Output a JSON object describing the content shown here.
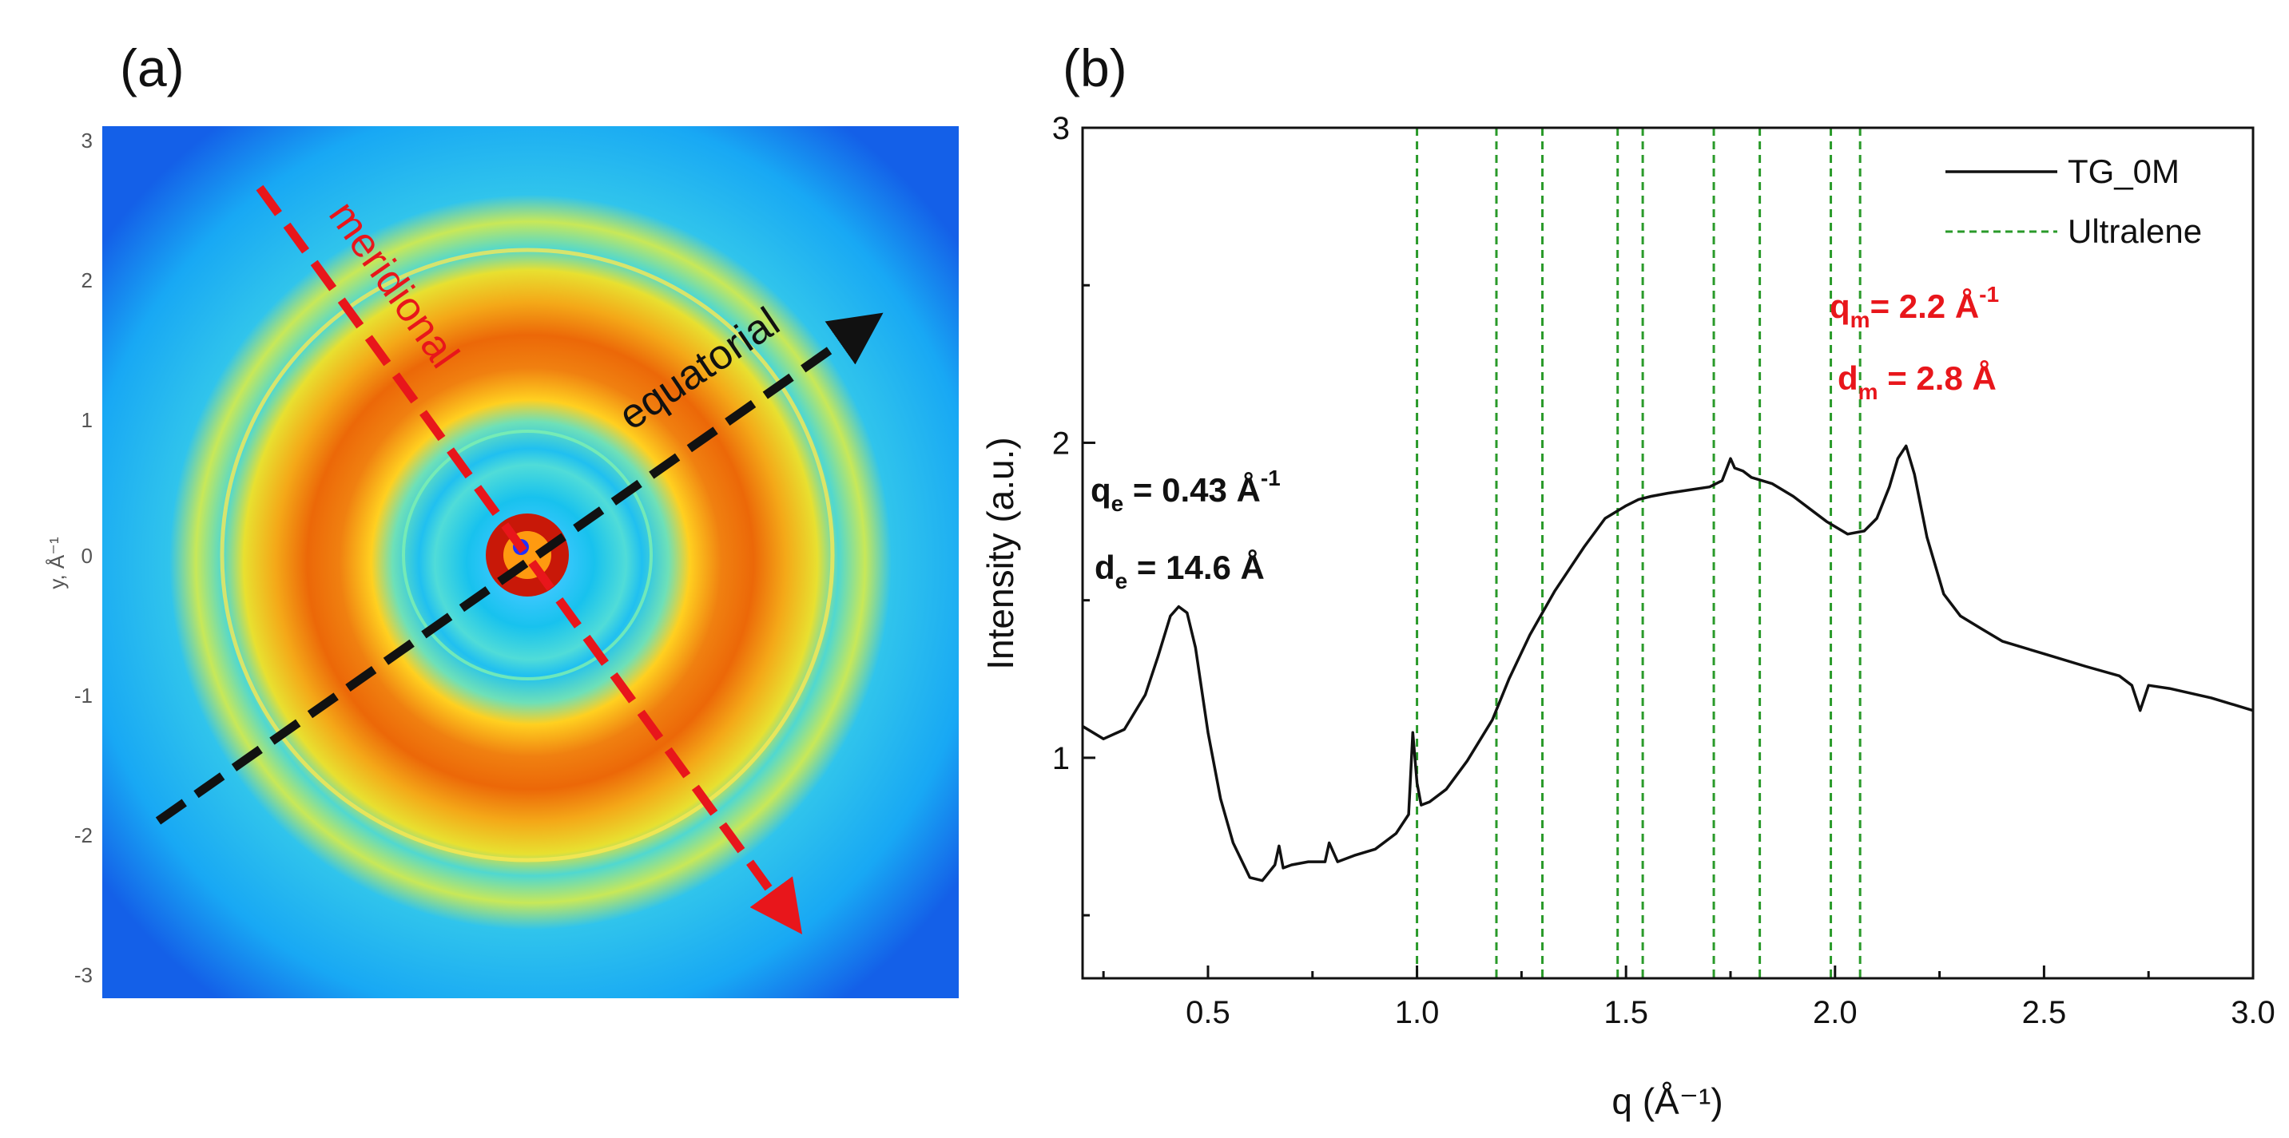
{
  "panel_a": {
    "label": "(a)",
    "y_axis_label": "y, Å⁻¹",
    "y_ticks": [
      "3",
      "2",
      "1",
      "0",
      "-1",
      "-2",
      "-3"
    ],
    "meridional_label": "meridional",
    "equatorial_label": "equatorial",
    "colors": {
      "meridional": "#e8161b",
      "equatorial": "#111111"
    }
  },
  "panel_b": {
    "label": "(b)",
    "annotations": {
      "qe": {
        "main": "q",
        "sub": "e",
        "rest": " = 0.43 Å",
        "sup": "-1"
      },
      "de": {
        "main": "d",
        "sub": "e",
        "rest": " = 14.6 Å"
      },
      "qm": {
        "main": "q",
        "sub": "m",
        "rest": "= 2.2 Å",
        "sup": "-1"
      },
      "dm": {
        "main": "d",
        "sub": "m",
        "rest": " = 2.8 Å"
      }
    },
    "colors": {
      "curve": "#111111",
      "ultralene": "#2a9a2a",
      "highlight": "#e8161b"
    }
  },
  "chart_data": {
    "type": "line",
    "title": "",
    "xlabel": "q (Å⁻¹)",
    "ylabel": "Intensity (a.u.)",
    "xlim": [
      0.2,
      3.0
    ],
    "ylim": [
      0.3,
      3.0
    ],
    "x_ticks": [
      0.5,
      1.0,
      1.5,
      2.0,
      2.5,
      3.0
    ],
    "x_tick_labels": [
      "0.5",
      "1.0",
      "1.5",
      "2.0",
      "2.5",
      "3.0"
    ],
    "y_ticks": [
      1,
      2,
      3
    ],
    "y_tick_labels": [
      "1",
      "2",
      "3"
    ],
    "legend": [
      {
        "name": "TG_0M",
        "style": "solid"
      },
      {
        "name": "Ultralene",
        "style": "dashed"
      }
    ],
    "legend_position": "top-right",
    "series": [
      {
        "name": "TG_0M",
        "x": [
          0.2,
          0.25,
          0.3,
          0.35,
          0.38,
          0.41,
          0.43,
          0.45,
          0.47,
          0.5,
          0.53,
          0.56,
          0.6,
          0.63,
          0.66,
          0.67,
          0.68,
          0.7,
          0.74,
          0.78,
          0.79,
          0.81,
          0.85,
          0.9,
          0.95,
          0.98,
          0.99,
          1.0,
          1.01,
          1.03,
          1.07,
          1.12,
          1.18,
          1.22,
          1.27,
          1.3,
          1.33,
          1.36,
          1.4,
          1.45,
          1.5,
          1.53,
          1.56,
          1.6,
          1.65,
          1.7,
          1.73,
          1.75,
          1.76,
          1.78,
          1.8,
          1.85,
          1.9,
          1.94,
          1.98,
          2.03,
          2.07,
          2.1,
          2.13,
          2.15,
          2.17,
          2.19,
          2.22,
          2.26,
          2.3,
          2.35,
          2.4,
          2.5,
          2.6,
          2.68,
          2.71,
          2.73,
          2.75,
          2.8,
          2.9,
          3.0
        ],
        "values": [
          1.1,
          1.06,
          1.09,
          1.2,
          1.32,
          1.45,
          1.48,
          1.46,
          1.35,
          1.08,
          0.87,
          0.73,
          0.62,
          0.61,
          0.66,
          0.72,
          0.65,
          0.66,
          0.67,
          0.67,
          0.73,
          0.67,
          0.69,
          0.71,
          0.76,
          0.82,
          1.08,
          0.92,
          0.85,
          0.86,
          0.9,
          0.99,
          1.12,
          1.25,
          1.39,
          1.46,
          1.53,
          1.59,
          1.67,
          1.76,
          1.8,
          1.82,
          1.83,
          1.84,
          1.85,
          1.86,
          1.88,
          1.95,
          1.92,
          1.91,
          1.89,
          1.87,
          1.83,
          1.79,
          1.75,
          1.71,
          1.72,
          1.76,
          1.86,
          1.95,
          1.99,
          1.9,
          1.7,
          1.52,
          1.45,
          1.41,
          1.37,
          1.33,
          1.29,
          1.26,
          1.23,
          1.15,
          1.23,
          1.22,
          1.19,
          1.15
        ]
      }
    ],
    "vlines": [
      1.0,
      1.19,
      1.3,
      1.48,
      1.54,
      1.71,
      1.82,
      1.99,
      2.06
    ]
  }
}
